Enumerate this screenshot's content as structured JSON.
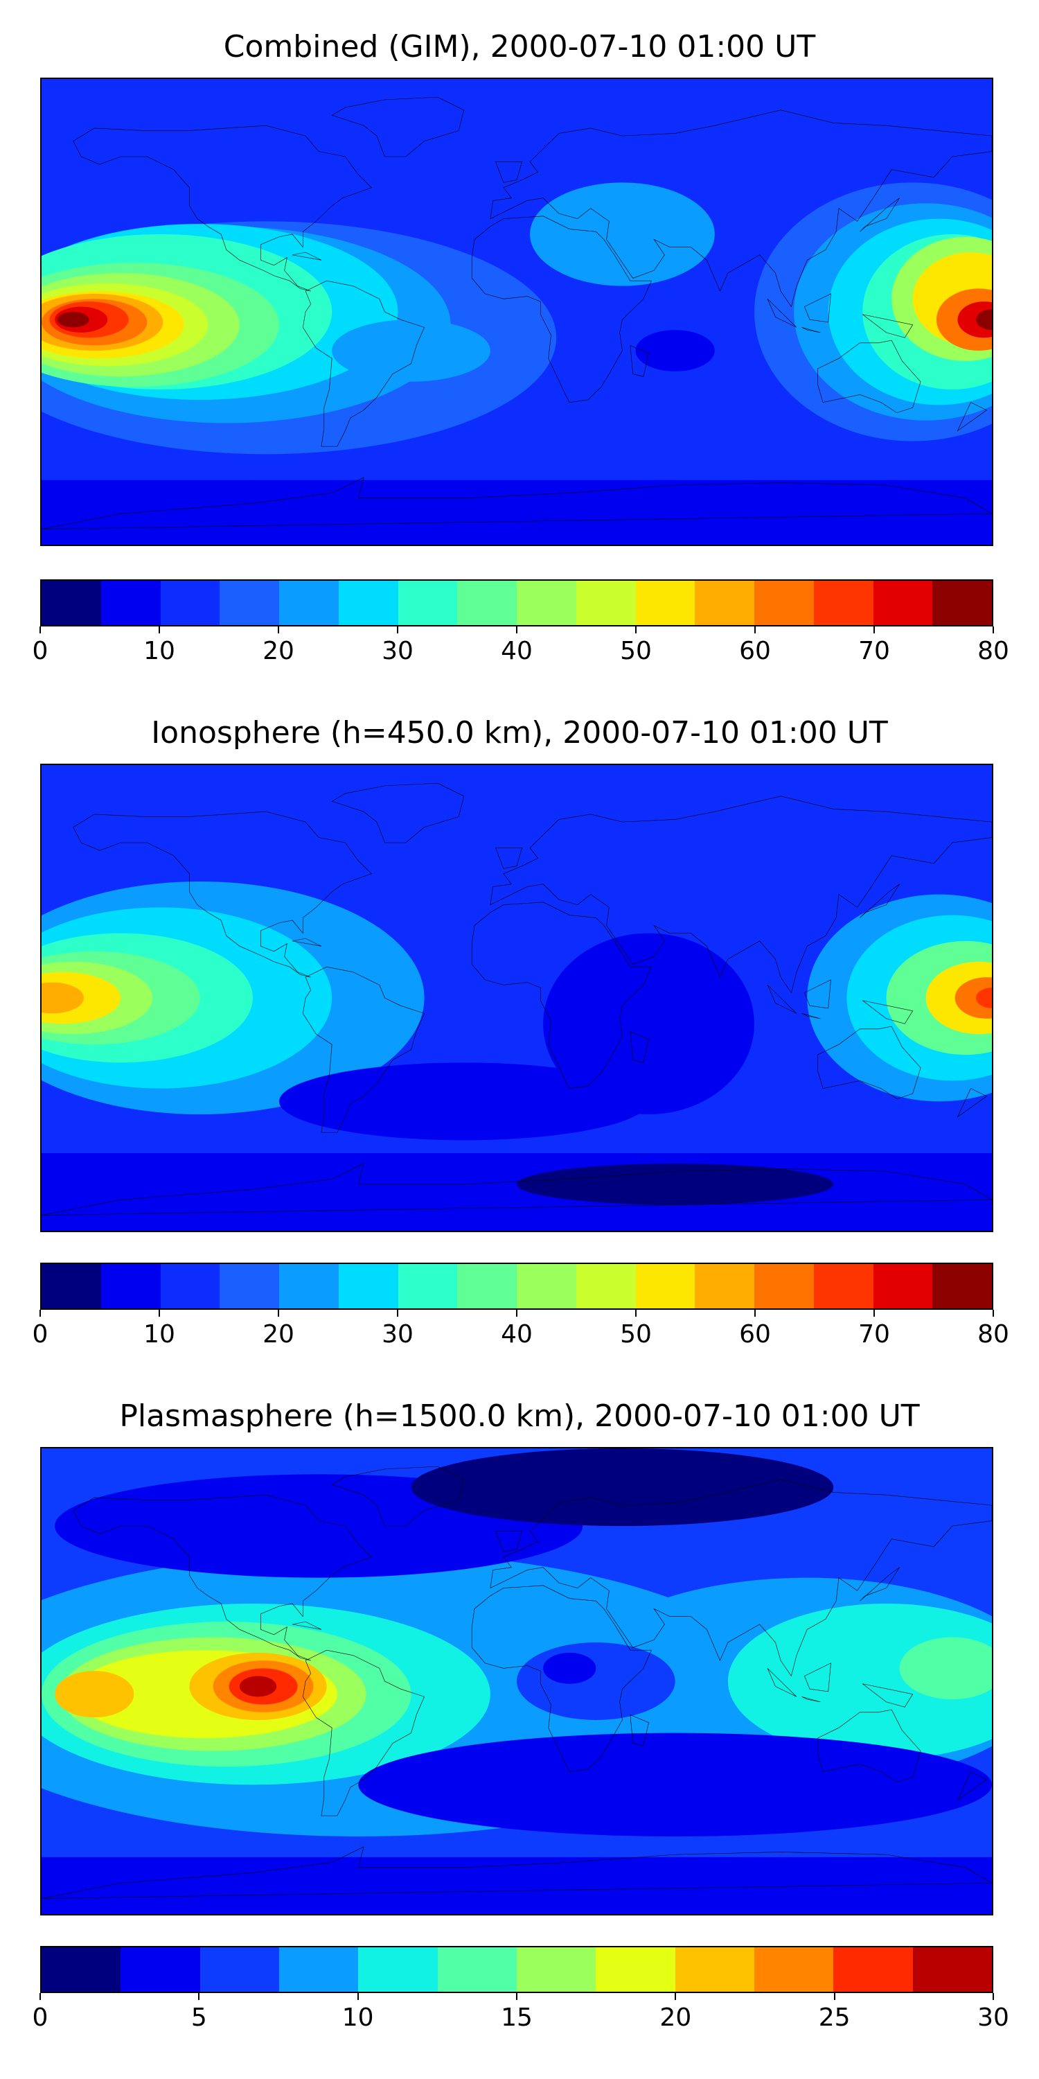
{
  "panels": [
    {
      "title": "Combined (GIM), 2000-07-10 01:00 UT",
      "colorbar": {
        "min": 0,
        "max": 80,
        "step": 5,
        "ticks": [
          "0",
          "10",
          "20",
          "30",
          "40",
          "50",
          "60",
          "70",
          "80"
        ]
      },
      "variant": "combined"
    },
    {
      "title": "Ionosphere  (h=450.0 km), 2000-07-10 01:00 UT",
      "colorbar": {
        "min": 0,
        "max": 80,
        "step": 5,
        "ticks": [
          "0",
          "10",
          "20",
          "30",
          "40",
          "50",
          "60",
          "70",
          "80"
        ]
      },
      "variant": "ionosphere"
    },
    {
      "title": "Plasmasphere (h=1500.0 km), 2000-07-10 01:00 UT",
      "colorbar": {
        "min": 0,
        "max": 30,
        "step": 2.5,
        "ticks": [
          "0",
          "5",
          "10",
          "15",
          "20",
          "25",
          "30"
        ]
      },
      "variant": "plasmasphere"
    }
  ],
  "colormap": [
    "#00007f",
    "#0000f1",
    "#0d2dff",
    "#1a5fff",
    "#0a9cff",
    "#00dcfe",
    "#2cffca",
    "#60ff96",
    "#9bff5c",
    "#cafe2c",
    "#fde700",
    "#ffad00",
    "#ff7400",
    "#ff3500",
    "#e30000",
    "#8c0000"
  ],
  "plasma_colormap": [
    "#00007f",
    "#0000f1",
    "#0d3cff",
    "#0a9cff",
    "#12f2e4",
    "#50ffa6",
    "#9bff5c",
    "#e4ff13",
    "#ffc200",
    "#ff8500",
    "#ff2a00",
    "#b80000"
  ],
  "chart_data": [
    {
      "type": "heatmap",
      "title": "Combined (GIM), 2000-07-10 01:00 UT",
      "xlabel": "",
      "ylabel": "",
      "zlim": [
        0,
        80
      ],
      "colorbar_ticks": [
        0,
        10,
        20,
        30,
        40,
        50,
        60,
        70,
        80
      ],
      "peaks": [
        {
          "lon": -150,
          "lat": -5,
          "value": 78
        },
        {
          "lon": 178,
          "lat": -5,
          "value": 75
        }
      ]
    },
    {
      "type": "heatmap",
      "title": "Ionosphere  (h=450.0 km), 2000-07-10 01:00 UT",
      "xlabel": "",
      "ylabel": "",
      "zlim": [
        0,
        80
      ],
      "colorbar_ticks": [
        0,
        10,
        20,
        30,
        40,
        50,
        60,
        70,
        80
      ],
      "peaks": [
        {
          "lon": -175,
          "lat": -5,
          "value": 55
        },
        {
          "lon": 175,
          "lat": -5,
          "value": 65
        }
      ]
    },
    {
      "type": "heatmap",
      "title": "Plasmasphere (h=1500.0 km), 2000-07-10 01:00 UT",
      "xlabel": "",
      "ylabel": "",
      "zlim": [
        0,
        30
      ],
      "colorbar_ticks": [
        0,
        5,
        10,
        15,
        20,
        25,
        30
      ],
      "peaks": [
        {
          "lon": -85,
          "lat": -5,
          "value": 29
        },
        {
          "lon": -165,
          "lat": -5,
          "value": 21
        }
      ]
    }
  ]
}
